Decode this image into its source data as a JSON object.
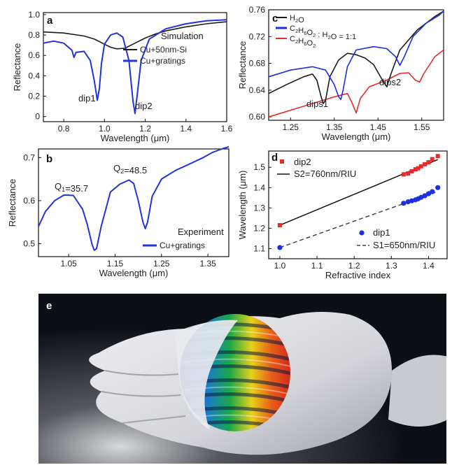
{
  "chart_data": [
    {
      "panel": "a",
      "type": "line",
      "xlabel": "Wavelength (μm)",
      "ylabel": "Reflectance",
      "xlim": [
        0.7,
        1.6
      ],
      "ylim": [
        -0.05,
        1.02
      ],
      "xticks": [
        0.8,
        1.0,
        1.2,
        1.4,
        1.6
      ],
      "yticks": [
        0,
        0.2,
        0.4,
        0.6,
        0.8,
        1.0
      ],
      "xtick_labels": [
        "0.8",
        "1.0",
        "1.2",
        "1.4",
        "1.6"
      ],
      "ytick_labels": [
        "0",
        "0.2",
        "0.4",
        "0.6",
        "0.8",
        "1.0"
      ],
      "legend_title": "Simulation",
      "legend_position": "right",
      "annotations": [
        "dip1",
        "dip2"
      ],
      "series": [
        {
          "name": "Cu+50nm-Si",
          "color": "#1a1a1a",
          "x": [
            0.7,
            0.8,
            0.9,
            0.95,
            1.0,
            1.03,
            1.06,
            1.1,
            1.15,
            1.2,
            1.25,
            1.3,
            1.4,
            1.5,
            1.6
          ],
          "y": [
            0.83,
            0.82,
            0.79,
            0.76,
            0.71,
            0.68,
            0.665,
            0.67,
            0.72,
            0.77,
            0.81,
            0.84,
            0.88,
            0.91,
            0.93
          ]
        },
        {
          "name": "Cu+gratings",
          "color": "#2233dd",
          "x": [
            0.7,
            0.75,
            0.8,
            0.84,
            0.85,
            0.86,
            0.9,
            0.93,
            0.95,
            0.965,
            0.975,
            0.985,
            1.0,
            1.03,
            1.06,
            1.09,
            1.12,
            1.14,
            1.15,
            1.16,
            1.18,
            1.22,
            1.3,
            1.4,
            1.5,
            1.6
          ],
          "y": [
            0.72,
            0.74,
            0.72,
            0.65,
            0.58,
            0.63,
            0.64,
            0.55,
            0.35,
            0.16,
            0.28,
            0.52,
            0.71,
            0.8,
            0.82,
            0.78,
            0.55,
            0.15,
            0.03,
            0.2,
            0.55,
            0.76,
            0.86,
            0.91,
            0.94,
            0.95
          ]
        }
      ]
    },
    {
      "panel": "b",
      "type": "line",
      "xlabel": "Wavelength (μm)",
      "ylabel": "Reflectance",
      "xlim": [
        0.985,
        1.395
      ],
      "ylim": [
        0.47,
        0.72
      ],
      "xticks": [
        1.05,
        1.15,
        1.25,
        1.35
      ],
      "yticks": [
        0.5,
        0.6,
        0.7
      ],
      "xtick_labels": [
        "1.05",
        "1.15",
        "1.25",
        "1.35"
      ],
      "ytick_labels": [
        "0.5",
        "0.6",
        "0.7"
      ],
      "legend_title": "Experiment",
      "legend_position": "bottom-right",
      "annotations": [
        "Q1=35.7",
        "Q2=48.5"
      ],
      "series": [
        {
          "name": "Cu+gratings",
          "color": "#2233dd",
          "x": [
            0.985,
            1.0,
            1.02,
            1.04,
            1.06,
            1.08,
            1.09,
            1.1,
            1.105,
            1.11,
            1.12,
            1.14,
            1.16,
            1.18,
            1.19,
            1.2,
            1.21,
            1.215,
            1.22,
            1.23,
            1.25,
            1.28,
            1.31,
            1.34,
            1.36,
            1.38,
            1.395
          ],
          "y": [
            0.54,
            0.575,
            0.6,
            0.613,
            0.612,
            0.58,
            0.545,
            0.5,
            0.485,
            0.488,
            0.54,
            0.62,
            0.638,
            0.648,
            0.64,
            0.6,
            0.55,
            0.535,
            0.55,
            0.61,
            0.65,
            0.67,
            0.685,
            0.7,
            0.712,
            0.72,
            0.725
          ]
        }
      ]
    },
    {
      "panel": "c",
      "type": "line",
      "xlabel": "Wavelength (μm)",
      "ylabel": "Reflectance",
      "xlim": [
        1.2,
        1.6
      ],
      "ylim": [
        0.595,
        0.76
      ],
      "xticks": [
        1.25,
        1.35,
        1.45,
        1.55
      ],
      "yticks": [
        0.6,
        0.64,
        0.68,
        0.72,
        0.76
      ],
      "xtick_labels": [
        "1.25",
        "1.35",
        "1.45",
        "1.55"
      ],
      "ytick_labels": [
        "0.60",
        "0.64",
        "0.68",
        "0.72",
        "0.76"
      ],
      "legend_position": "top-left",
      "annotations": [
        "dips1",
        "dips2"
      ],
      "series": [
        {
          "name": "H2O",
          "color": "#1a1a1a",
          "x": [
            1.2,
            1.24,
            1.28,
            1.3,
            1.31,
            1.32,
            1.325,
            1.33,
            1.34,
            1.36,
            1.38,
            1.4,
            1.42,
            1.44,
            1.46,
            1.47,
            1.48,
            1.5,
            1.54,
            1.58,
            1.6
          ],
          "y": [
            0.635,
            0.648,
            0.66,
            0.664,
            0.655,
            0.63,
            0.62,
            0.625,
            0.66,
            0.685,
            0.695,
            0.693,
            0.688,
            0.678,
            0.655,
            0.645,
            0.665,
            0.7,
            0.73,
            0.75,
            0.758
          ]
        },
        {
          "name": "C2H6O2:H2O = 1:1",
          "color": "#1a2ee6",
          "x": [
            1.2,
            1.25,
            1.3,
            1.33,
            1.35,
            1.36,
            1.365,
            1.37,
            1.38,
            1.4,
            1.44,
            1.47,
            1.49,
            1.5,
            1.51,
            1.53,
            1.56,
            1.59,
            1.6
          ],
          "y": [
            0.66,
            0.67,
            0.675,
            0.67,
            0.648,
            0.63,
            0.626,
            0.64,
            0.675,
            0.7,
            0.705,
            0.702,
            0.69,
            0.677,
            0.69,
            0.72,
            0.74,
            0.752,
            0.758
          ]
        },
        {
          "name": "C2H6O2",
          "color": "#e62b2b",
          "x": [
            1.2,
            1.25,
            1.3,
            1.35,
            1.38,
            1.39,
            1.4,
            1.41,
            1.43,
            1.47,
            1.5,
            1.52,
            1.535,
            1.545,
            1.555,
            1.58,
            1.6
          ],
          "y": [
            0.6,
            0.61,
            0.62,
            0.63,
            0.635,
            0.622,
            0.606,
            0.628,
            0.645,
            0.655,
            0.665,
            0.666,
            0.655,
            0.652,
            0.665,
            0.69,
            0.7
          ]
        }
      ]
    },
    {
      "panel": "d",
      "type": "scatter",
      "xlabel": "Refractive index",
      "ylabel": "Wavelength (μm)",
      "xlim": [
        0.97,
        1.45
      ],
      "ylim": [
        1.05,
        1.58
      ],
      "xticks": [
        1.0,
        1.1,
        1.2,
        1.3,
        1.4
      ],
      "yticks": [
        1.1,
        1.2,
        1.3,
        1.4,
        1.5
      ],
      "xtick_labels": [
        "1.0",
        "1.1",
        "1.2",
        "1.3",
        "1.4"
      ],
      "ytick_labels": [
        "1.1",
        "1.2",
        "1.3",
        "1.4",
        "1.5"
      ],
      "series": [
        {
          "name": "dip2",
          "color": "#e62b2b",
          "marker": "square",
          "x": [
            1.0,
            1.333,
            1.345,
            1.355,
            1.365,
            1.372,
            1.38,
            1.39,
            1.4,
            1.41,
            1.425
          ],
          "y": [
            1.215,
            1.465,
            1.47,
            1.48,
            1.49,
            1.495,
            1.505,
            1.515,
            1.525,
            1.54,
            1.555
          ]
        },
        {
          "name": "dip1",
          "color": "#1a2ee6",
          "marker": "circle",
          "x": [
            1.0,
            1.333,
            1.345,
            1.355,
            1.365,
            1.372,
            1.38,
            1.39,
            1.4,
            1.41,
            1.425
          ],
          "y": [
            1.105,
            1.323,
            1.33,
            1.335,
            1.34,
            1.345,
            1.352,
            1.36,
            1.37,
            1.38,
            1.4
          ]
        }
      ],
      "fits": [
        {
          "name": "S2=760nm/RIU",
          "style": "solid",
          "color": "#111111",
          "x": [
            1.0,
            1.425
          ],
          "y": [
            1.215,
            1.538
          ]
        },
        {
          "name": "S1=650nm/RIU",
          "style": "dashed",
          "color": "#444444",
          "x": [
            1.0,
            1.425
          ],
          "y": [
            1.105,
            1.381
          ]
        }
      ]
    }
  ],
  "panel_labels": [
    "a",
    "b",
    "c",
    "d",
    "e"
  ],
  "photo": {
    "panel": "e",
    "background_color": "#0c0f15",
    "glove_color": "#dcdde2",
    "wafer_colors": [
      "#1a2ea8",
      "#1aa84a",
      "#e8d21a",
      "#e8631a",
      "#d22a1a"
    ]
  }
}
